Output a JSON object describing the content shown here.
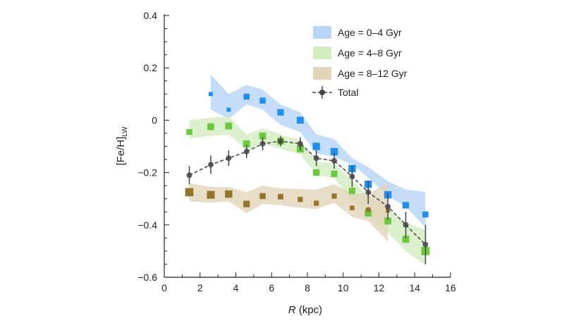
{
  "chart_data": {
    "type": "line",
    "xlabel_italic": "R",
    "xlabel_rest": " (kpc)",
    "ylabel_main": "[Fe/H]",
    "ylabel_sub": "LW",
    "xlim": [
      0,
      16
    ],
    "ylim": [
      -0.6,
      0.4
    ],
    "xticks": [
      0,
      2,
      4,
      6,
      8,
      10,
      12,
      14,
      16
    ],
    "yticks": [
      -0.6,
      -0.4,
      -0.2,
      0,
      0.2,
      0.4
    ],
    "ytick_labels": [
      "−0.6",
      "−0.4",
      "−0.2",
      "0",
      "0.2",
      "0.4"
    ],
    "grid": false,
    "legend_position": "top-right",
    "series": [
      {
        "name": "Age = 0–4 Gyr",
        "kind": "band+markers",
        "color": "#1e8ff0",
        "band_color": "#b7d5f7",
        "x": [
          2.6,
          3.6,
          4.6,
          5.5,
          6.5,
          7.6,
          8.5,
          9.5,
          10.5,
          11.4,
          12.5,
          13.5,
          14.6
        ],
        "y": [
          0.1,
          0.04,
          0.09,
          0.075,
          0.03,
          0.0,
          -0.1,
          -0.12,
          -0.185,
          -0.245,
          -0.285,
          -0.325,
          -0.36
        ],
        "marker_weight": [
          0.3,
          0.3,
          0.7,
          0.7,
          0.8,
          0.9,
          1.0,
          1.0,
          1.0,
          1.0,
          1.0,
          0.8,
          0.7
        ],
        "band_upper": [
          0.175,
          0.1,
          0.135,
          0.117,
          0.06,
          0.03,
          -0.054,
          -0.072,
          -0.144,
          -0.18,
          -0.233,
          -0.265,
          -0.274
        ],
        "band_lower": [
          0.04,
          0.005,
          0.06,
          0.04,
          -0.018,
          -0.045,
          -0.126,
          -0.14,
          -0.17,
          -0.22,
          -0.29,
          -0.33,
          -0.41
        ]
      },
      {
        "name": "Age = 4–8 Gyr",
        "kind": "band+markers",
        "color": "#6cc83c",
        "band_color": "#d3ecc0",
        "x": [
          1.4,
          2.6,
          3.6,
          4.6,
          5.5,
          6.5,
          7.6,
          8.5,
          9.5,
          10.5,
          11.4,
          12.5,
          13.5,
          14.6
        ],
        "y": [
          -0.045,
          -0.025,
          -0.022,
          -0.09,
          -0.06,
          -0.08,
          -0.11,
          -0.2,
          -0.205,
          -0.27,
          -0.355,
          -0.385,
          -0.455,
          -0.5
        ],
        "marker_weight": [
          0.7,
          0.9,
          0.9,
          0.9,
          0.9,
          0.9,
          0.9,
          0.8,
          0.8,
          0.8,
          0.9,
          0.9,
          0.9,
          1.2
        ],
        "band_upper": [
          0.0,
          0.01,
          0.015,
          -0.055,
          -0.03,
          -0.055,
          -0.075,
          -0.16,
          -0.165,
          -0.23,
          -0.29,
          -0.34,
          -0.39,
          -0.42
        ],
        "band_lower": [
          -0.07,
          -0.06,
          -0.055,
          -0.115,
          -0.09,
          -0.11,
          -0.13,
          -0.21,
          -0.22,
          -0.31,
          -0.365,
          -0.43,
          -0.5,
          -0.555
        ]
      },
      {
        "name": "Age = 8–12 Gyr",
        "kind": "band+markers",
        "color": "#94762a",
        "band_color": "#e2d5b8",
        "x": [
          1.4,
          2.6,
          3.6,
          4.6,
          5.5,
          6.5,
          7.6,
          8.5,
          9.5,
          10.5,
          11.4,
          12.5
        ],
        "y": [
          -0.275,
          -0.285,
          -0.282,
          -0.32,
          -0.29,
          -0.292,
          -0.303,
          -0.317,
          -0.29,
          -0.335,
          -0.342,
          -0.345
        ],
        "marker_weight": [
          1.2,
          1.1,
          1.0,
          0.8,
          0.7,
          0.6,
          0.5,
          0.5,
          0.5,
          0.4,
          0.4,
          0.3
        ],
        "band_upper": [
          -0.24,
          -0.255,
          -0.255,
          -0.275,
          -0.25,
          -0.26,
          -0.263,
          -0.265,
          -0.245,
          -0.28,
          -0.28,
          -0.24
        ],
        "band_lower": [
          -0.31,
          -0.315,
          -0.31,
          -0.355,
          -0.32,
          -0.325,
          -0.335,
          -0.34,
          -0.315,
          -0.37,
          -0.385,
          -0.465
        ]
      },
      {
        "name": "Total",
        "kind": "errorbar-line",
        "color": "#444444",
        "x": [
          1.4,
          2.6,
          3.6,
          4.6,
          5.5,
          6.5,
          7.6,
          8.5,
          9.5,
          10.5,
          11.4,
          12.5,
          13.5,
          14.6
        ],
        "y": [
          -0.21,
          -0.17,
          -0.145,
          -0.12,
          -0.09,
          -0.08,
          -0.09,
          -0.145,
          -0.155,
          -0.215,
          -0.275,
          -0.33,
          -0.4,
          -0.475
        ],
        "yerr": [
          0.035,
          0.035,
          0.03,
          0.025,
          0.025,
          0.02,
          0.025,
          0.03,
          0.03,
          0.04,
          0.045,
          0.05,
          0.05,
          0.075
        ]
      }
    ]
  }
}
